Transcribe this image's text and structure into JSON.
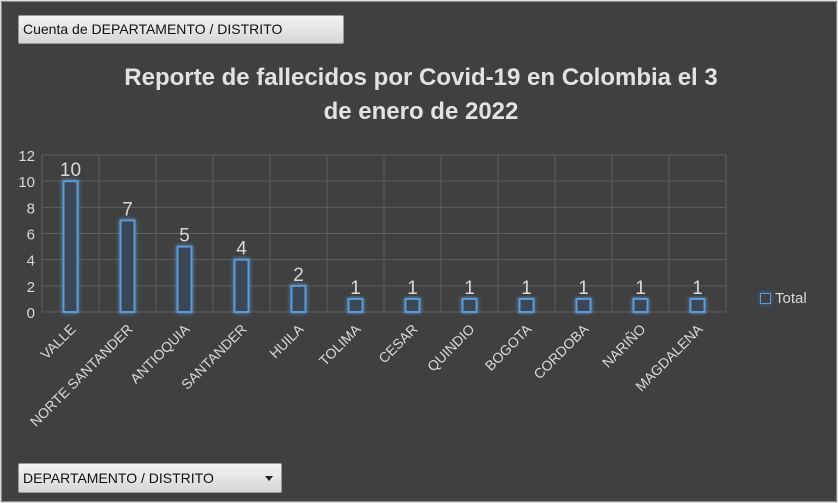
{
  "filters": {
    "value_field": "Cuenta de DEPARTAMENTO / DISTRITO",
    "axis_field": "DEPARTAMENTO / DISTRITO"
  },
  "colors": {
    "background": "#404040",
    "bar_outline": "#5b9bd5",
    "bar_glow": "#2e75b6",
    "text": "#d9d9d9",
    "grid": "#5e5e5e"
  },
  "chart_data": {
    "type": "bar",
    "title_lines": [
      "Reporte de fallecidos por Covid-19 en Colombia el 3",
      "de enero de 2022"
    ],
    "categories": [
      "VALLE",
      "NORTE SANTANDER",
      "ANTIOQUIA",
      "SANTANDER",
      "HUILA",
      "TOLIMA",
      "CESAR",
      "QUINDIO",
      "BOGOTA",
      "CORDOBA",
      "NARIÑO",
      "MAGDALENA"
    ],
    "series": [
      {
        "name": "Total",
        "values": [
          10,
          7,
          5,
          4,
          2,
          1,
          1,
          1,
          1,
          1,
          1,
          1
        ]
      }
    ],
    "ylim": [
      0,
      12
    ],
    "yticks": [
      0,
      2,
      4,
      6,
      8,
      10,
      12
    ],
    "grid": true,
    "legend_position": "right",
    "data_labels": true
  }
}
